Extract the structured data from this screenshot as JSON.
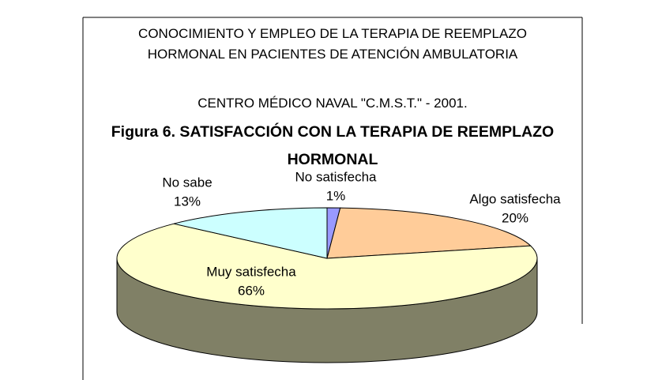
{
  "chart_data": {
    "type": "pie",
    "title": "CONOCIMIENTO Y EMPLEO DE LA TERAPIA DE REEMPLAZO HORMONAL EN PACIENTES DE ATENCIÓN AMBULATORIA",
    "subtitle": "CENTRO MÉDICO NAVAL \"C.M.S.T.\" - 2001.",
    "figure_title": "Figura 6. SATISFACCIÓN CON LA TERAPIA DE REEMPLAZO HORMONAL",
    "categories": [
      "No satisfecha",
      "Algo satisfecha",
      "Muy satisfecha",
      "No sabe"
    ],
    "values": [
      1,
      20,
      66,
      13
    ],
    "value_labels": [
      "1%",
      "20%",
      "66%",
      "13%"
    ],
    "colors": [
      "#9999ff",
      "#ffcc99",
      "#ffffcc",
      "#ccffff"
    ],
    "side_color": "#808066"
  }
}
